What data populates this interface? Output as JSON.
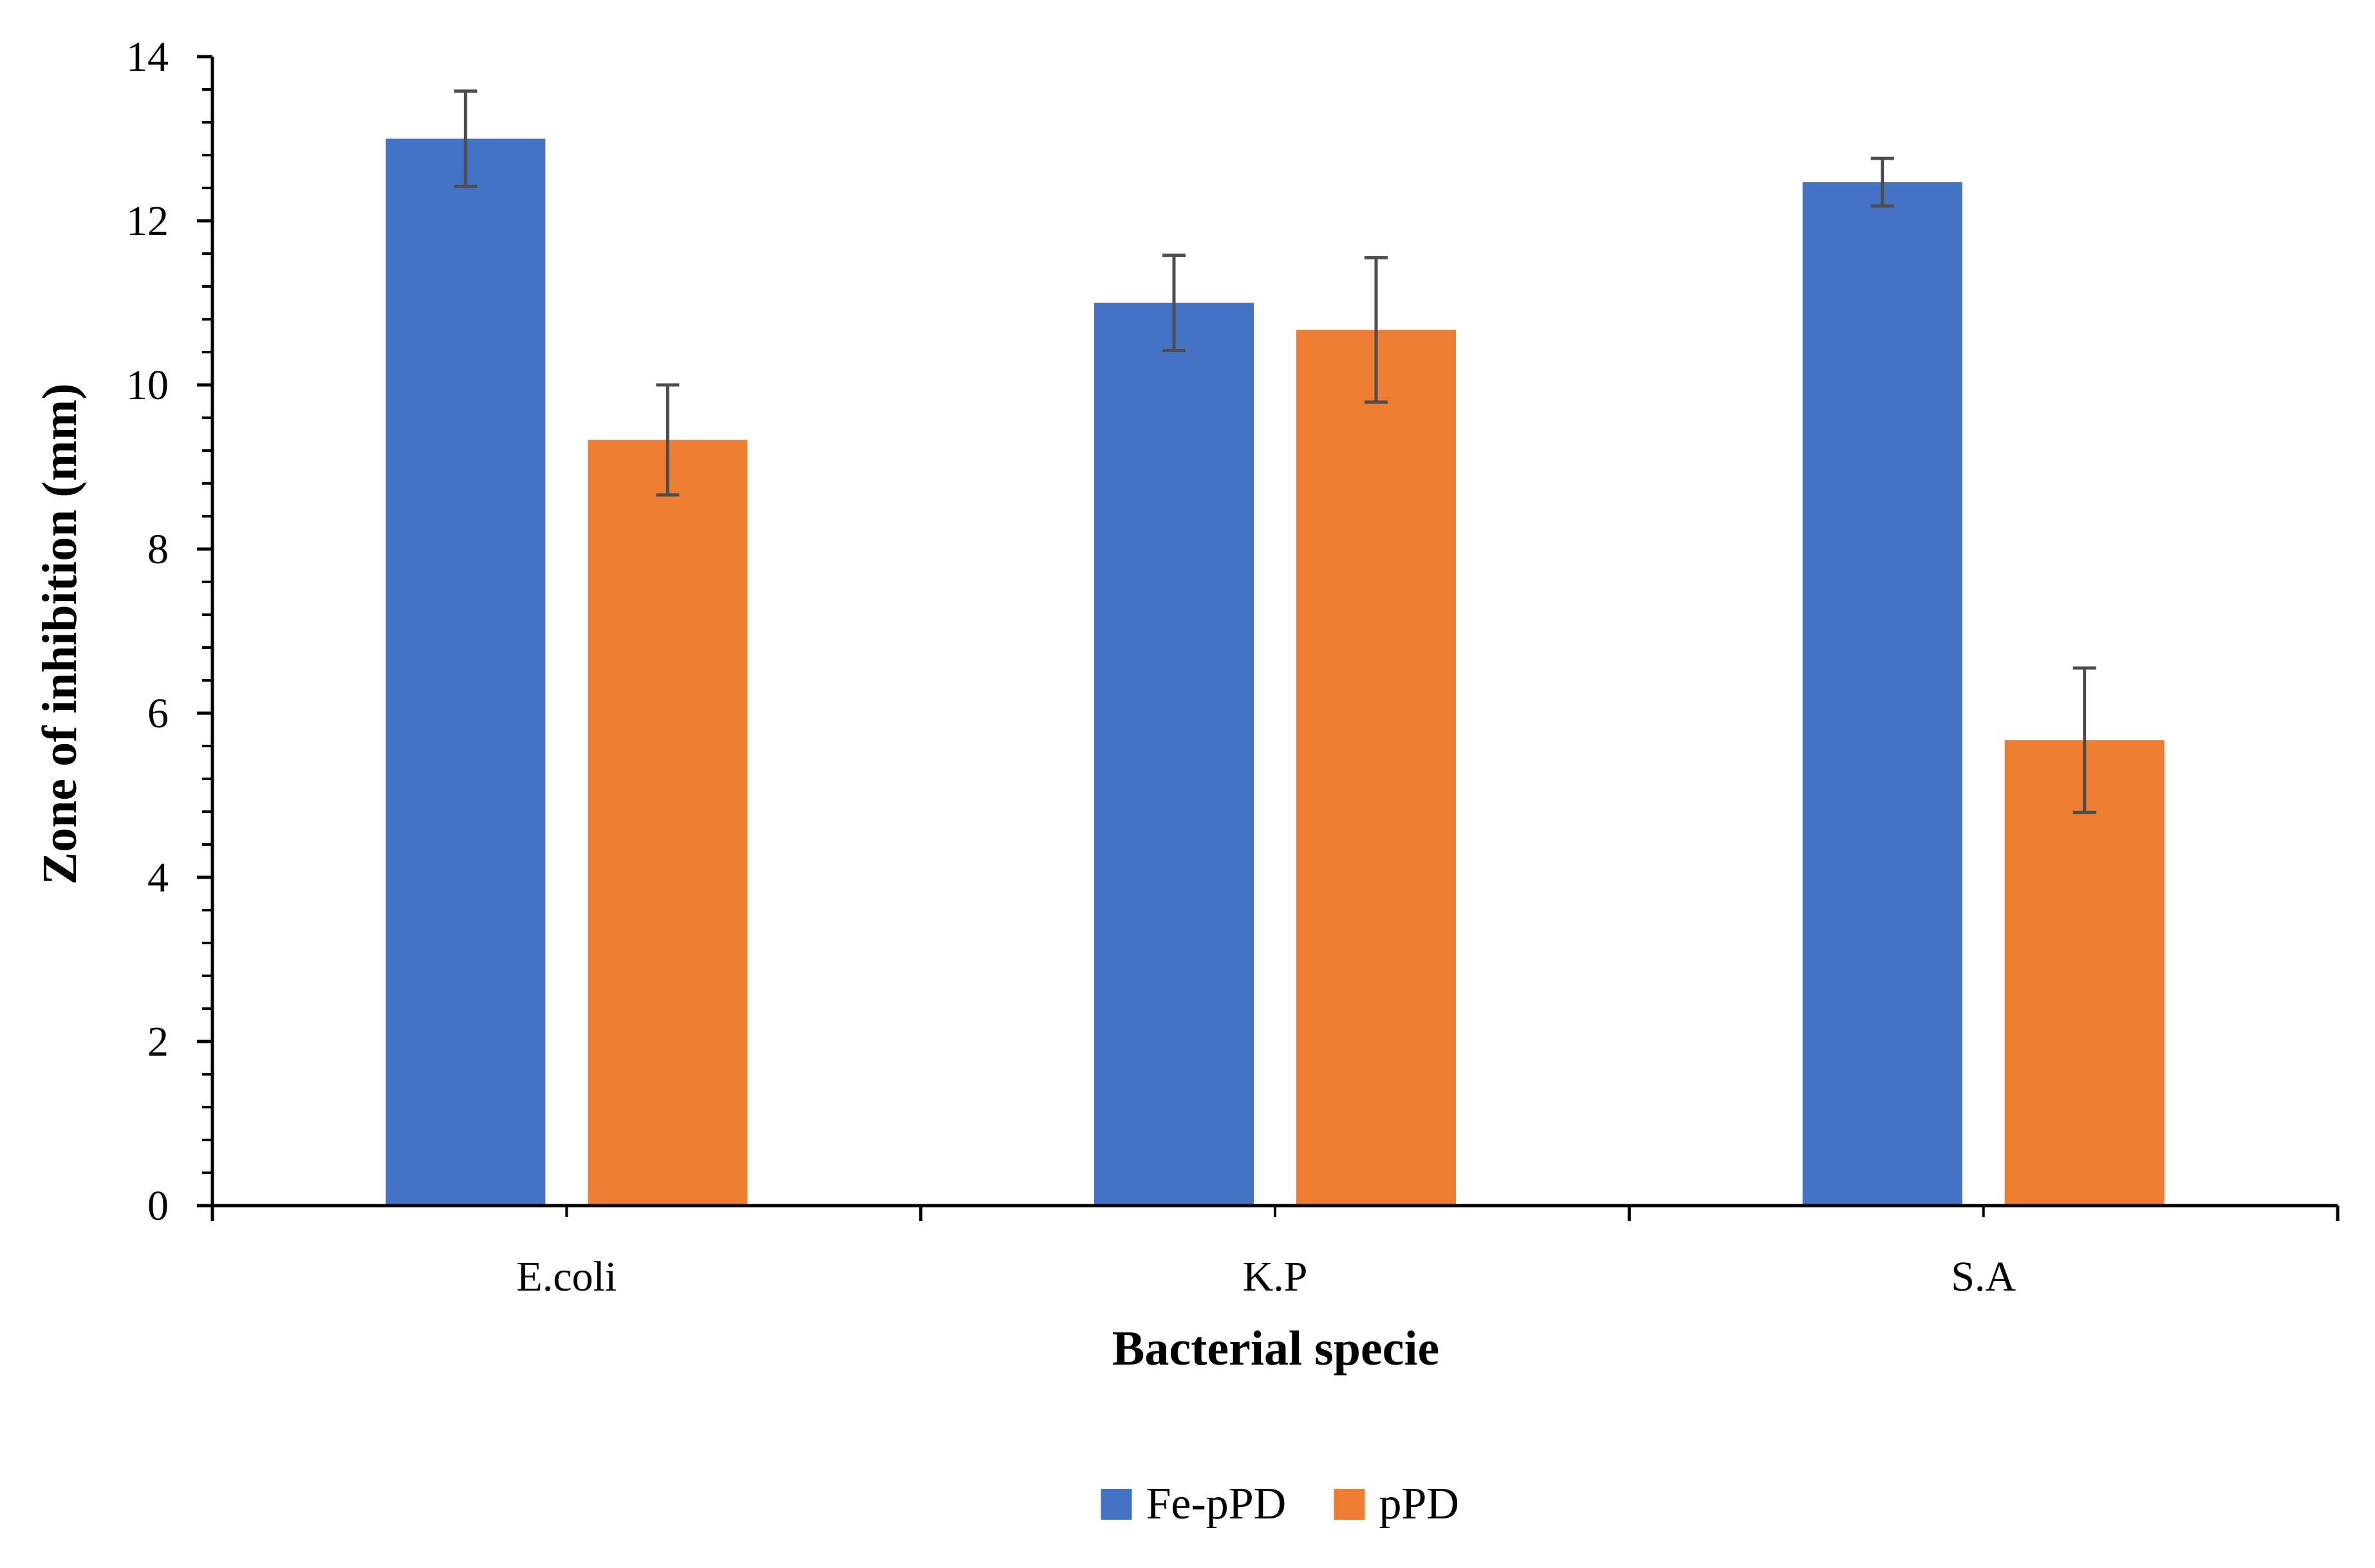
{
  "chart_data": {
    "type": "bar",
    "title": "",
    "xlabel": "Bacterial specie",
    "ylabel": "Zone of inhibition (mm)",
    "categories": [
      "E.coli",
      "K.P",
      "S.A"
    ],
    "ylim": [
      0,
      14
    ],
    "yticks": [
      0,
      2,
      4,
      6,
      8,
      10,
      12,
      14
    ],
    "minor_tick_step": 0.4,
    "grid": false,
    "legend_position": "bottom-center",
    "series": [
      {
        "name": "Fe-pPD",
        "color": "#4472C4",
        "values": [
          13.0,
          11.0,
          12.47
        ],
        "errors": [
          0.58,
          0.58,
          0.29
        ]
      },
      {
        "name": "pPD",
        "color": "#ED7D31",
        "values": [
          9.33,
          10.67,
          5.67
        ],
        "errors": [
          0.67,
          0.88,
          0.88
        ]
      }
    ],
    "error_bar_color": "#4D4D4D"
  }
}
